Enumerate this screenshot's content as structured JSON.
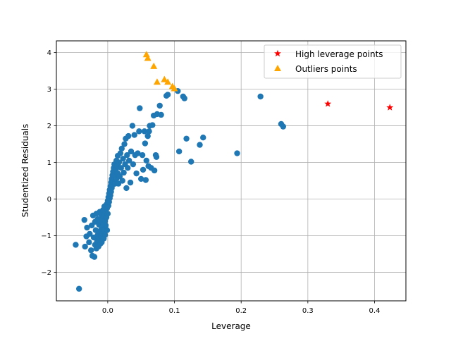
{
  "chart_data": {
    "type": "scatter",
    "title": "",
    "xlabel": "Leverage",
    "ylabel": "Studentized Residuals",
    "xlim": [
      -0.077,
      0.447
    ],
    "ylim": [
      -2.78,
      4.32
    ],
    "xticks": [
      0.0,
      0.1,
      0.2,
      0.3,
      0.4
    ],
    "xtick_labels": [
      "0.0",
      "0.1",
      "0.2",
      "0.3",
      "0.4"
    ],
    "yticks": [
      -2,
      -1,
      0,
      1,
      2,
      3,
      4
    ],
    "ytick_labels": [
      "−2",
      "−1",
      "0",
      "1",
      "2",
      "3",
      "4"
    ],
    "grid": true,
    "legend_position": "upper right",
    "series": [
      {
        "name": "",
        "marker": "circle",
        "color": "#1f77b4",
        "points": [
          [
            -0.048,
            -1.25
          ],
          [
            -0.043,
            -2.45
          ],
          [
            -0.035,
            -0.57
          ],
          [
            -0.032,
            -1.02
          ],
          [
            -0.034,
            -1.3
          ],
          [
            -0.031,
            -0.78
          ],
          [
            -0.028,
            -1.18
          ],
          [
            -0.027,
            -0.95
          ],
          [
            -0.025,
            -1.4
          ],
          [
            -0.024,
            -0.72
          ],
          [
            -0.023,
            -1.55
          ],
          [
            -0.022,
            -0.45
          ],
          [
            -0.021,
            -1.05
          ],
          [
            -0.02,
            -1.58
          ],
          [
            -0.019,
            -0.62
          ],
          [
            -0.019,
            -1.25
          ],
          [
            -0.018,
            -0.85
          ],
          [
            -0.017,
            -1.35
          ],
          [
            -0.017,
            -0.4
          ],
          [
            -0.016,
            -1.15
          ],
          [
            -0.015,
            -0.55
          ],
          [
            -0.015,
            -0.98
          ],
          [
            -0.014,
            -1.3
          ],
          [
            -0.013,
            -0.7
          ],
          [
            -0.013,
            -1.1
          ],
          [
            -0.012,
            -0.35
          ],
          [
            -0.012,
            -0.88
          ],
          [
            -0.011,
            -1.22
          ],
          [
            -0.011,
            -0.6
          ],
          [
            -0.01,
            -1.0
          ],
          [
            -0.01,
            -0.42
          ],
          [
            -0.009,
            -0.8
          ],
          [
            -0.009,
            -1.18
          ],
          [
            -0.008,
            -0.52
          ],
          [
            -0.008,
            -0.95
          ],
          [
            -0.007,
            -0.3
          ],
          [
            -0.007,
            -0.7
          ],
          [
            -0.006,
            -1.08
          ],
          [
            -0.006,
            -0.45
          ],
          [
            -0.005,
            -0.85
          ],
          [
            -0.005,
            -0.2
          ],
          [
            -0.004,
            -0.6
          ],
          [
            -0.004,
            -0.98
          ],
          [
            -0.003,
            -0.35
          ],
          [
            -0.003,
            -0.72
          ],
          [
            -0.002,
            -0.15
          ],
          [
            -0.002,
            -0.5
          ],
          [
            -0.001,
            -0.85
          ],
          [
            -0.001,
            -0.25
          ],
          [
            0.0,
            -0.05
          ],
          [
            0.0,
            -0.4
          ],
          [
            0.001,
            0.05
          ],
          [
            0.001,
            -0.18
          ],
          [
            0.002,
            0.15
          ],
          [
            0.002,
            -0.08
          ],
          [
            0.003,
            0.25
          ],
          [
            0.003,
            0.02
          ],
          [
            0.004,
            0.35
          ],
          [
            0.004,
            0.1
          ],
          [
            0.005,
            0.45
          ],
          [
            0.005,
            0.2
          ],
          [
            0.006,
            0.55
          ],
          [
            0.006,
            0.3
          ],
          [
            0.007,
            0.65
          ],
          [
            0.007,
            0.38
          ],
          [
            0.008,
            0.75
          ],
          [
            0.008,
            0.48
          ],
          [
            0.009,
            0.85
          ],
          [
            0.009,
            0.55
          ],
          [
            0.01,
            0.95
          ],
          [
            0.01,
            0.62
          ],
          [
            0.011,
            0.42
          ],
          [
            0.012,
            0.8
          ],
          [
            0.013,
            1.05
          ],
          [
            0.013,
            0.55
          ],
          [
            0.014,
            0.9
          ],
          [
            0.015,
            1.18
          ],
          [
            0.015,
            0.7
          ],
          [
            0.016,
            0.42
          ],
          [
            0.017,
            1.0
          ],
          [
            0.018,
            0.62
          ],
          [
            0.019,
            1.25
          ],
          [
            0.02,
            0.85
          ],
          [
            0.021,
            1.38
          ],
          [
            0.022,
            0.5
          ],
          [
            0.023,
            1.1
          ],
          [
            0.024,
            0.72
          ],
          [
            0.025,
            1.5
          ],
          [
            0.026,
            0.95
          ],
          [
            0.027,
            1.65
          ],
          [
            0.028,
            0.3
          ],
          [
            0.029,
            1.2
          ],
          [
            0.03,
            0.85
          ],
          [
            0.031,
            1.72
          ],
          [
            0.032,
            1.05
          ],
          [
            0.034,
            0.45
          ],
          [
            0.035,
            1.3
          ],
          [
            0.037,
            2.0
          ],
          [
            0.038,
            0.95
          ],
          [
            0.04,
            1.75
          ],
          [
            0.041,
            1.2
          ],
          [
            0.043,
            0.7
          ],
          [
            0.045,
            1.25
          ],
          [
            0.047,
            1.85
          ],
          [
            0.048,
            2.48
          ],
          [
            0.05,
            0.55
          ],
          [
            0.052,
            1.2
          ],
          [
            0.053,
            0.8
          ],
          [
            0.055,
            1.85
          ],
          [
            0.056,
            1.52
          ],
          [
            0.057,
            0.52
          ],
          [
            0.058,
            1.05
          ],
          [
            0.06,
            1.72
          ],
          [
            0.061,
            0.9
          ],
          [
            0.062,
            1.85
          ],
          [
            0.063,
            2.0
          ],
          [
            0.065,
            0.85
          ],
          [
            0.067,
            2.02
          ],
          [
            0.069,
            2.28
          ],
          [
            0.07,
            0.78
          ],
          [
            0.072,
            1.2
          ],
          [
            0.073,
            1.15
          ],
          [
            0.074,
            2.32
          ],
          [
            0.078,
            2.55
          ],
          [
            0.08,
            2.3
          ],
          [
            0.088,
            2.82
          ],
          [
            0.09,
            2.85
          ],
          [
            0.105,
            2.95
          ],
          [
            0.107,
            1.3
          ],
          [
            0.113,
            2.8
          ],
          [
            0.115,
            2.75
          ],
          [
            0.118,
            1.65
          ],
          [
            0.125,
            1.02
          ],
          [
            0.138,
            1.48
          ],
          [
            0.143,
            1.68
          ],
          [
            0.194,
            1.25
          ],
          [
            0.229,
            2.8
          ],
          [
            0.26,
            2.05
          ],
          [
            0.263,
            1.98
          ]
        ]
      },
      {
        "name": "High leverage points",
        "marker": "star",
        "color": "#ff0000",
        "points": [
          [
            0.33,
            2.6
          ],
          [
            0.423,
            2.5
          ]
        ]
      },
      {
        "name": "Outliers points",
        "marker": "triangle",
        "color": "#ffa500",
        "points": [
          [
            0.058,
            3.95
          ],
          [
            0.06,
            3.85
          ],
          [
            0.069,
            3.63
          ],
          [
            0.074,
            3.2
          ],
          [
            0.085,
            3.27
          ],
          [
            0.09,
            3.2
          ],
          [
            0.097,
            3.08
          ],
          [
            0.1,
            3.02
          ]
        ]
      }
    ]
  }
}
